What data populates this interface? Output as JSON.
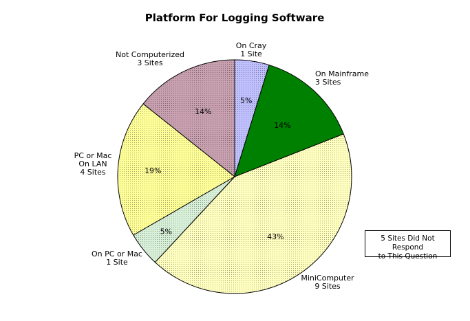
{
  "chart_data": {
    "type": "pie",
    "title": "Platform For Logging Software",
    "slices": [
      {
        "label": [
          "On Cray",
          "1 Site"
        ],
        "sites": 1,
        "percent_label": "5%",
        "color": "#c0c0ff"
      },
      {
        "label": [
          "On Mainframe",
          "3 Sites"
        ],
        "sites": 3,
        "percent_label": "14%",
        "color": "#008000"
      },
      {
        "label": [
          "MiniComputer",
          "9 Sites"
        ],
        "sites": 9,
        "percent_label": "43%",
        "color": "#ffffc0"
      },
      {
        "label": [
          "On PC or Mac",
          "1 Site"
        ],
        "sites": 1,
        "percent_label": "5%",
        "color": "#d8f0d8"
      },
      {
        "label": [
          "PC or Mac",
          "On LAN",
          "4 Sites"
        ],
        "sites": 4,
        "percent_label": "19%",
        "color": "#ffff99"
      },
      {
        "label": [
          "Not Computerized",
          "3 Sites"
        ],
        "sites": 3,
        "percent_label": "14%",
        "color": "#c8a0b0"
      }
    ],
    "start": "12 o'clock",
    "direction": "clockwise",
    "annotation": [
      "5 Sites Did Not Respond",
      "to This Question"
    ]
  }
}
